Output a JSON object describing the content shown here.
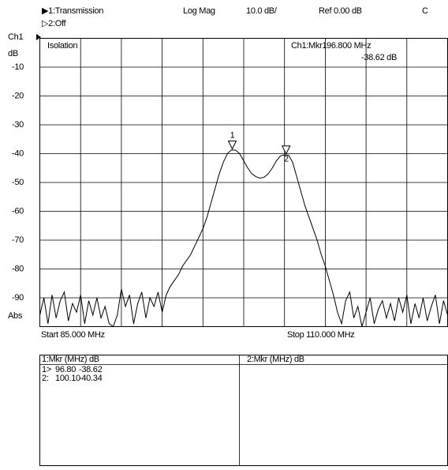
{
  "header": {
    "trace1": "▶1:Transmission",
    "trace2": "▷2:Off",
    "format": "Log Mag",
    "scale": "10.0 dB/",
    "ref": "Ref 0.00 dB",
    "channel_flag": "C"
  },
  "chart_data": {
    "type": "line",
    "title": "Isolation",
    "channel_label": "Ch1",
    "unit_label": "dB",
    "bottom_label": "Abs",
    "start_label": "Start 85.000 MHz",
    "stop_label": "Stop 110.000 MHz",
    "readout": {
      "marker": "Ch1:Mkr1",
      "frequency": "96.800 MHz",
      "level": "-38.62 dB"
    },
    "xlim": [
      85,
      110
    ],
    "xticks": [
      85,
      87.5,
      90,
      92.5,
      95,
      97.5,
      100,
      102.5,
      105,
      107.5,
      110
    ],
    "ylim": [
      -100,
      0
    ],
    "yticks": [
      -10,
      -20,
      -30,
      -40,
      -50,
      -60,
      -70,
      -80,
      -90
    ],
    "grid": true,
    "x": [
      85,
      85.25,
      85.5,
      85.75,
      86,
      86.25,
      86.5,
      86.75,
      87,
      87.25,
      87.5,
      87.75,
      88,
      88.25,
      88.5,
      88.75,
      89,
      89.25,
      89.5,
      89.75,
      90,
      90.25,
      90.5,
      90.75,
      91,
      91.25,
      91.5,
      91.75,
      92,
      92.25,
      92.5,
      92.75,
      93,
      93.25,
      93.5,
      93.75,
      94,
      94.25,
      94.5,
      94.75,
      95,
      95.25,
      95.5,
      95.75,
      96,
      96.25,
      96.5,
      96.75,
      97,
      97.25,
      97.5,
      97.75,
      98,
      98.25,
      98.5,
      98.75,
      99,
      99.25,
      99.5,
      99.75,
      100,
      100.25,
      100.5,
      100.75,
      101,
      101.25,
      101.5,
      101.75,
      102,
      102.25,
      102.5,
      102.75,
      103,
      103.25,
      103.5,
      103.75,
      104,
      104.25,
      104.5,
      104.75,
      105,
      105.25,
      105.5,
      105.75,
      106,
      106.25,
      106.5,
      106.75,
      107,
      107.25,
      107.5,
      107.75,
      108,
      108.25,
      108.5,
      108.75,
      109,
      109.25,
      109.5,
      109.75,
      110
    ],
    "series": [
      {
        "color": "#000000",
        "values": [
          -96,
          -90,
          -99,
          -89,
          -97,
          -91,
          -88,
          -98,
          -92,
          -95,
          -89,
          -99,
          -91,
          -96,
          -90,
          -97,
          -93,
          -99,
          -100,
          -96,
          -87,
          -93,
          -89,
          -99,
          -92,
          -88,
          -97,
          -90,
          -93,
          -88,
          -95,
          -89,
          -86,
          -84,
          -82,
          -79,
          -77,
          -75,
          -72,
          -69,
          -66,
          -62,
          -57,
          -52,
          -47,
          -43,
          -40,
          -38.7,
          -38.8,
          -40,
          -42.5,
          -45,
          -47,
          -48,
          -48.5,
          -48.2,
          -47,
          -45,
          -42.5,
          -40.8,
          -40.4,
          -40.5,
          -43,
          -48,
          -53,
          -58,
          -62,
          -66,
          -70,
          -75,
          -79,
          -84,
          -89,
          -95,
          -99,
          -91,
          -88,
          -97,
          -93,
          -100,
          -95,
          -90,
          -99,
          -94,
          -91,
          -97,
          -92,
          -98,
          -90,
          -95,
          -89,
          -99,
          -92,
          -97,
          -90,
          -98,
          -93,
          -89,
          -99,
          -91,
          -96
        ]
      }
    ],
    "markers": [
      {
        "label": "1",
        "x": 96.8,
        "value": -38.62
      },
      {
        "label": "2",
        "x": 100.1,
        "value": -40.34
      }
    ]
  },
  "marker_table": {
    "left_header": "1:Mkr (MHz)   dB",
    "right_header": "2:Mkr (MHz)   dB",
    "rows": [
      [
        "1>",
        "96.80",
        "-38.62"
      ],
      [
        "2:",
        "100.10",
        "-40.34"
      ]
    ]
  }
}
